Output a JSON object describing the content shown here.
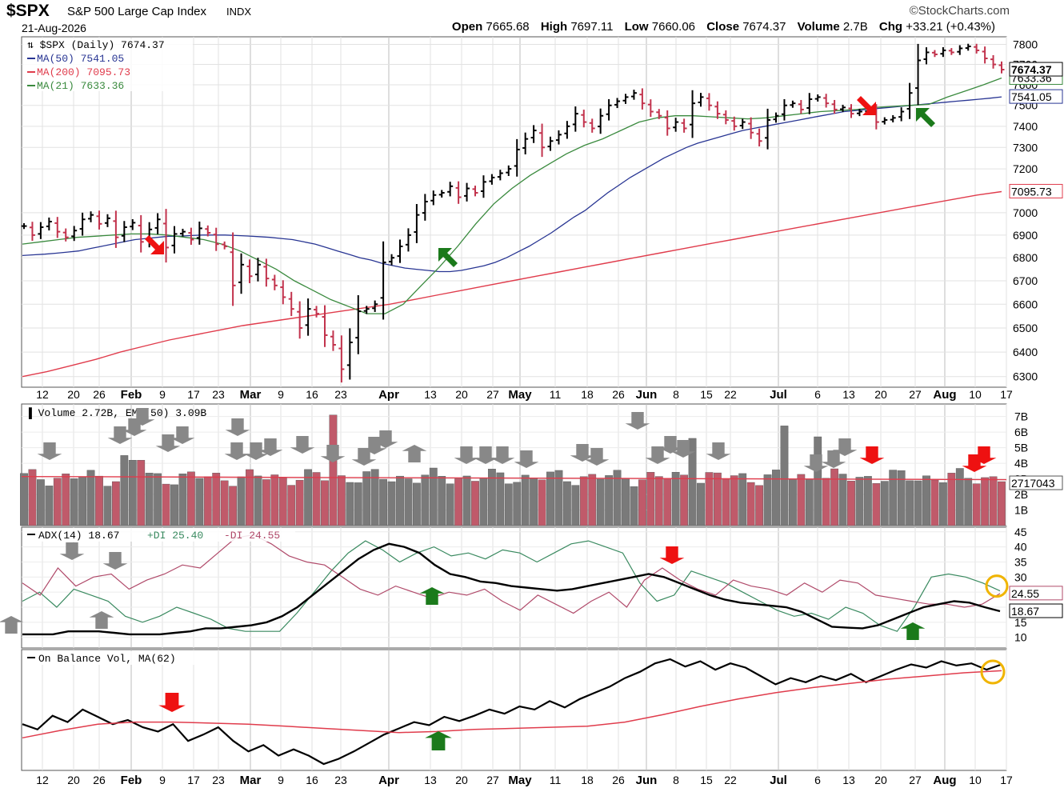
{
  "header": {
    "symbol": "$SPX",
    "name": "S&P 500 Large Cap Index",
    "exchange": "INDX",
    "date": "21-Aug-2026",
    "brand": "©StockCharts.com",
    "open_label": "Open",
    "open": "7665.68",
    "high_label": "High",
    "high": "7697.11",
    "low_label": "Low",
    "low": "7660.06",
    "close_label": "Close",
    "close": "7674.37",
    "volume_label": "Volume",
    "volume": "2.7B",
    "chg_label": "Chg",
    "chg": "+33.21 (+0.43%)"
  },
  "colors": {
    "up": "#000000",
    "down": "#c2334d",
    "ma50": "#283593",
    "ma200": "#e03c4c",
    "ma21": "#3a8a3e",
    "vol_down": "#c05a6a",
    "vol_up": "#7a7a7a",
    "plus_di": "#3a8a60",
    "minus_di": "#b04a6a",
    "arrow_green": "#1b7a1b",
    "arrow_red": "#ee1111",
    "arrow_gray": "#888888",
    "circle": "#f0b400"
  },
  "x_axis": {
    "labels": [
      {
        "t": "12",
        "bold": false
      },
      {
        "t": "20",
        "bold": false
      },
      {
        "t": "26",
        "bold": false
      },
      {
        "t": "Feb",
        "bold": true
      },
      {
        "t": "9",
        "bold": false
      },
      {
        "t": "17",
        "bold": false
      },
      {
        "t": "23",
        "bold": false
      },
      {
        "t": "Mar",
        "bold": true
      },
      {
        "t": "9",
        "bold": false
      },
      {
        "t": "16",
        "bold": false
      },
      {
        "t": "23",
        "bold": false
      },
      {
        "t": "Apr",
        "bold": true
      },
      {
        "t": "13",
        "bold": false
      },
      {
        "t": "20",
        "bold": false
      },
      {
        "t": "27",
        "bold": false
      },
      {
        "t": "May",
        "bold": true
      },
      {
        "t": "11",
        "bold": false
      },
      {
        "t": "18",
        "bold": false
      },
      {
        "t": "26",
        "bold": false
      },
      {
        "t": "Jun",
        "bold": true
      },
      {
        "t": "8",
        "bold": false
      },
      {
        "t": "15",
        "bold": false
      },
      {
        "t": "22",
        "bold": false
      },
      {
        "t": "Jul",
        "bold": true
      },
      {
        "t": "6",
        "bold": false
      },
      {
        "t": "13",
        "bold": false
      },
      {
        "t": "20",
        "bold": false
      },
      {
        "t": "27",
        "bold": false
      },
      {
        "t": "Aug",
        "bold": true
      },
      {
        "t": "10",
        "bold": false
      },
      {
        "t": "17",
        "bold": false
      }
    ]
  },
  "chart_data": [
    {
      "type": "ohlc",
      "title": "$SPX (Daily) 7674.37",
      "y_ticks": [
        6300,
        6400,
        6500,
        6600,
        6700,
        6800,
        6900,
        7000,
        7200,
        7300,
        7400,
        7500,
        7600,
        7700,
        7800
      ],
      "y_range": [
        6270,
        7830
      ],
      "scale": "log",
      "last_close": 7674.37,
      "closes": [
        6940,
        6900,
        6935,
        6960,
        6915,
        6890,
        6920,
        6970,
        6990,
        6950,
        6975,
        6890,
        6935,
        6955,
        6870,
        6925,
        6970,
        6845,
        6905,
        6915,
        6880,
        6930,
        6910,
        6860,
        6850,
        6680,
        6770,
        6720,
        6770,
        6710,
        6680,
        6630,
        6580,
        6500,
        6580,
        6560,
        6470,
        6430,
        6330,
        6440,
        6570,
        6580,
        6600,
        6780,
        6800,
        6850,
        6900,
        6990,
        7050,
        7080,
        7090,
        7120,
        7070,
        7110,
        7090,
        7140,
        7160,
        7180,
        7200,
        7290,
        7340,
        7380,
        7300,
        7330,
        7360,
        7400,
        7460,
        7420,
        7390,
        7450,
        7500,
        7520,
        7540,
        7560,
        7510,
        7470,
        7450,
        7390,
        7420,
        7390,
        7510,
        7540,
        7500,
        7460,
        7430,
        7400,
        7420,
        7370,
        7330,
        7430,
        7450,
        7500,
        7510,
        7480,
        7530,
        7540,
        7510,
        7480,
        7490,
        7460,
        7470,
        7480,
        7420,
        7430,
        7440,
        7470,
        7560,
        7720,
        7760,
        7750,
        7770,
        7760,
        7780,
        7790,
        7770,
        7730,
        7700,
        7674.37
      ],
      "series": [
        {
          "name": "MA(50)",
          "last": 7541.05,
          "label": "MA(50) 7541.05",
          "values": [
            6810,
            6813,
            6816,
            6820,
            6825,
            6830,
            6840,
            6850,
            6860,
            6870,
            6880,
            6885,
            6890,
            6895,
            6895,
            6898,
            6900,
            6900,
            6900,
            6898,
            6896,
            6893,
            6890,
            6885,
            6880,
            6870,
            6860,
            6845,
            6830,
            6815,
            6800,
            6790,
            6775,
            6765,
            6755,
            6750,
            6745,
            6740,
            6740,
            6745,
            6755,
            6765,
            6780,
            6800,
            6825,
            6850,
            6880,
            6910,
            6945,
            6980,
            7010,
            7050,
            7090,
            7125,
            7160,
            7190,
            7220,
            7250,
            7275,
            7300,
            7320,
            7335,
            7350,
            7365,
            7380,
            7390,
            7400,
            7410,
            7420,
            7430,
            7440,
            7450,
            7460,
            7470,
            7475,
            7480,
            7485,
            7490,
            7495,
            7500,
            7505,
            7510,
            7515,
            7520,
            7525,
            7530,
            7535,
            7541.05
          ]
        },
        {
          "name": "MA(200)",
          "last": 7095.73,
          "label": "MA(200) 7095.73",
          "values": [
            6300,
            6320,
            6345,
            6370,
            6400,
            6425,
            6450,
            6470,
            6490,
            6510,
            6525,
            6540,
            6555,
            6570,
            6585,
            6600,
            6620,
            6640,
            6660,
            6680,
            6700,
            6720,
            6740,
            6760,
            6780,
            6800,
            6820,
            6840,
            6860,
            6880,
            6900,
            6920,
            6940,
            6960,
            6980,
            7000,
            7020,
            7040,
            7060,
            7080,
            7095.73
          ]
        },
        {
          "name": "MA(21)",
          "last": 7633.36,
          "label": "MA(21) 7633.36",
          "values": [
            6860,
            6870,
            6880,
            6890,
            6895,
            6900,
            6905,
            6905,
            6900,
            6890,
            6880,
            6860,
            6830,
            6790,
            6750,
            6700,
            6660,
            6620,
            6590,
            6560,
            6560,
            6600,
            6680,
            6760,
            6850,
            6950,
            7040,
            7110,
            7170,
            7220,
            7270,
            7310,
            7340,
            7380,
            7420,
            7440,
            7450,
            7450,
            7445,
            7440,
            7435,
            7440,
            7450,
            7460,
            7470,
            7475,
            7480,
            7490,
            7495,
            7500,
            7505,
            7540,
            7570,
            7600,
            7633.36
          ]
        }
      ]
    },
    {
      "type": "bar",
      "title": "Volume 2.72B, EMA(50) 3.09B",
      "y_ticks": [
        1,
        2,
        3,
        4,
        5,
        6,
        7
      ],
      "y_unit": "B",
      "last_volume": 2717043000,
      "last_label": "2717043",
      "ema_label": "EMA(50) 3.09B"
    },
    {
      "type": "line",
      "title": "ADX(14) 18.67 +DI 25.40 -DI 24.55",
      "y_ticks": [
        10,
        15,
        20,
        25,
        30,
        35,
        40,
        45
      ],
      "y_range": [
        7,
        46
      ],
      "series": [
        {
          "name": "ADX(14)",
          "last": 18.67,
          "label": "ADX(14) 18.67",
          "values": [
            11,
            11,
            11,
            12,
            12,
            12,
            11.5,
            11,
            11,
            11,
            11.5,
            12,
            13,
            13,
            13.5,
            14,
            15,
            17,
            20,
            24,
            28,
            32,
            36,
            39,
            41,
            40,
            38,
            34,
            31,
            30,
            28.5,
            28,
            27,
            26.5,
            26,
            25.5,
            26,
            27,
            28,
            29,
            30,
            31,
            30,
            28,
            26,
            24,
            22.5,
            21.5,
            21,
            20.5,
            20,
            18.5,
            16,
            13.5,
            13.2,
            13,
            14,
            16,
            18,
            20,
            21,
            22,
            21.5,
            20,
            18.67
          ]
        },
        {
          "name": "+DI",
          "last": 25.4,
          "label": "+DI 25.40",
          "values": [
            22,
            25,
            20,
            26,
            24,
            22,
            17,
            15,
            17,
            20,
            18,
            16,
            13,
            12,
            12,
            12,
            18,
            25,
            32,
            38,
            42,
            39,
            35,
            38,
            40,
            37,
            38,
            36,
            39,
            38,
            35,
            38,
            41,
            42,
            40,
            38,
            28,
            22,
            24,
            32,
            30,
            28,
            25,
            22,
            19,
            17,
            18,
            16,
            20,
            18,
            14,
            12,
            20,
            30,
            31,
            30,
            28,
            25.4
          ]
        },
        {
          "name": "-DI",
          "last": 24.55,
          "label": "-DI 24.55",
          "values": [
            28,
            24,
            33,
            27,
            30,
            31,
            26,
            29,
            31,
            34,
            33,
            38,
            43,
            44,
            41,
            37,
            35,
            34,
            30,
            26,
            24,
            27,
            25,
            23,
            25,
            24,
            26,
            22,
            19,
            24,
            21,
            18,
            22,
            25,
            20,
            29,
            33,
            29,
            26,
            24,
            29,
            27,
            26,
            24,
            28,
            25,
            29,
            28,
            24,
            23,
            22,
            21,
            21,
            20,
            21,
            24.55
          ]
        }
      ]
    },
    {
      "type": "line",
      "title": "On Balance Vol, MA(62)",
      "series": [
        {
          "name": "On Balance Vol",
          "values": [
            38,
            33,
            46,
            40,
            52,
            45,
            38,
            42,
            35,
            31,
            38,
            22,
            28,
            35,
            22,
            12,
            18,
            8,
            14,
            8,
            0,
            5,
            12,
            20,
            28,
            34,
            40,
            37,
            45,
            41,
            46,
            52,
            48,
            55,
            52,
            60,
            54,
            62,
            68,
            74,
            82,
            88,
            96,
            100,
            93,
            98,
            90,
            96,
            92,
            84,
            76,
            82,
            78,
            84,
            80,
            86,
            78,
            84,
            90,
            95,
            92,
            98,
            94,
            96,
            90,
            95
          ]
        },
        {
          "name": "MA(62)",
          "values": [
            25,
            32,
            38,
            40,
            40,
            39,
            38,
            36,
            34,
            32,
            30,
            31,
            33,
            34,
            35,
            36,
            40,
            47,
            55,
            62,
            68,
            73,
            77,
            81,
            84,
            87,
            89
          ]
        }
      ]
    }
  ]
}
